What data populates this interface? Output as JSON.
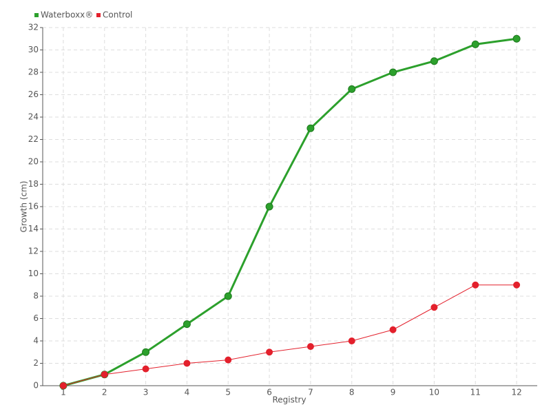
{
  "chart_data": {
    "type": "line",
    "x_label": "Registry",
    "y_label": "Growth (cm)",
    "categories": [
      "1",
      "2",
      "3",
      "4",
      "5",
      "6",
      "7",
      "8",
      "9",
      "10",
      "11",
      "12"
    ],
    "series": [
      {
        "name": "Waterboxx®",
        "color": "#2ca02c",
        "values": [
          0,
          1,
          3,
          5.5,
          8,
          16,
          23,
          26.5,
          28,
          29,
          30.5,
          31
        ]
      },
      {
        "name": "Control",
        "color": "#e3202c",
        "values": [
          0,
          1,
          1.5,
          2,
          2.3,
          3,
          3.5,
          4,
          5,
          7,
          9,
          9
        ]
      }
    ],
    "ylim": [
      0,
      32
    ],
    "yticks": [
      0,
      2,
      4,
      6,
      8,
      10,
      12,
      14,
      16,
      18,
      20,
      22,
      24,
      26,
      28,
      30,
      32
    ],
    "grid": true,
    "legend": "top-left"
  }
}
